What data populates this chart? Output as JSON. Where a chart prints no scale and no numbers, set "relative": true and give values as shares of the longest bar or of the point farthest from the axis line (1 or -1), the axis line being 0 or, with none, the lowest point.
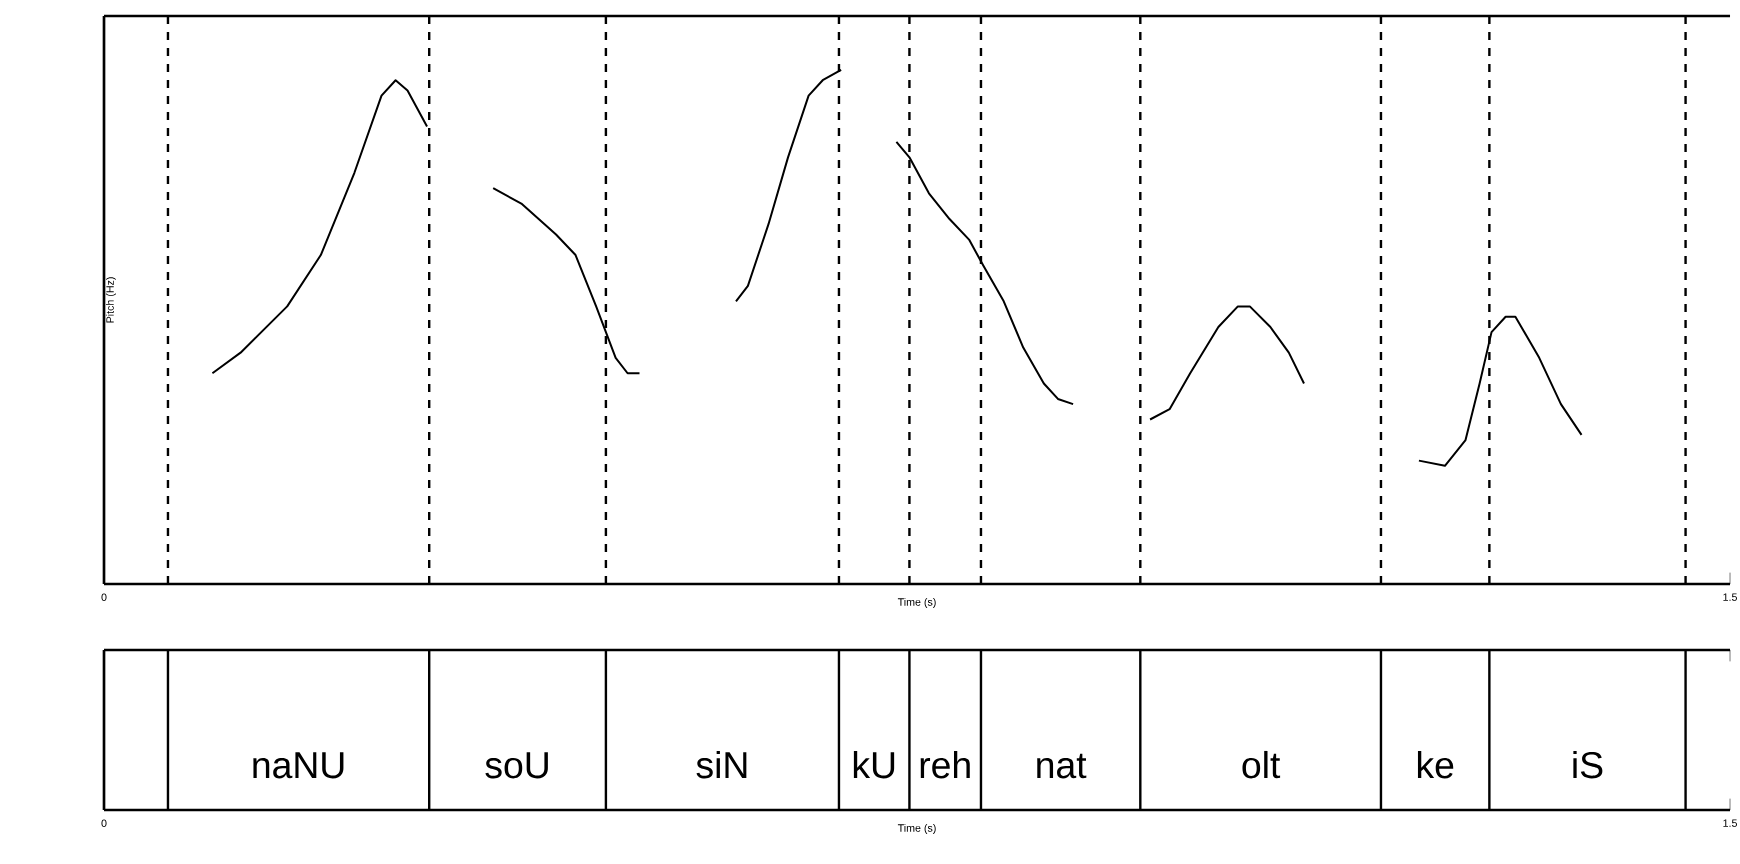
{
  "chart_data": {
    "type": "line",
    "relative": true,
    "xlabel": "Time (s)",
    "ylabel": "Pitch (Hz)",
    "xlim": [
      0,
      1.5
    ],
    "xticks": [
      0,
      1.5
    ],
    "x2lim": [
      0,
      1.5
    ],
    "x2ticks": [
      0,
      1.5
    ],
    "x2label": "Time (s)",
    "marker": "none",
    "line_style": "solid",
    "grid": false,
    "series": [
      {
        "color": "#000000",
        "x": [
          0.1,
          0.126,
          0.169,
          0.2,
          0.231,
          0.256,
          0.269,
          0.28,
          0.298,
          null,
          0.359,
          0.385,
          0.417,
          0.435,
          0.454,
          0.472,
          0.483,
          0.494,
          null,
          0.583,
          0.594,
          0.613,
          0.631,
          0.65,
          0.663,
          0.68,
          null,
          0.731,
          0.743,
          0.761,
          0.78,
          0.798,
          0.811,
          0.83,
          0.848,
          0.867,
          0.88,
          0.894,
          null,
          0.965,
          0.983,
          1.002,
          1.028,
          1.046,
          1.057,
          1.076,
          1.093,
          1.107,
          null,
          1.213,
          1.237,
          1.256,
          1.269,
          1.28,
          1.293,
          1.302,
          1.324,
          1.344,
          1.363
        ],
        "values": [
          0.41,
          0.45,
          0.54,
          0.64,
          0.8,
          0.95,
          0.98,
          0.96,
          0.89,
          null,
          0.77,
          0.74,
          0.68,
          0.64,
          0.54,
          0.44,
          0.41,
          0.41,
          null,
          0.55,
          0.58,
          0.7,
          0.83,
          0.95,
          0.98,
          1.0,
          null,
          0.86,
          0.83,
          0.76,
          0.71,
          0.67,
          0.62,
          0.55,
          0.46,
          0.39,
          0.36,
          0.35,
          null,
          0.32,
          0.34,
          0.41,
          0.5,
          0.54,
          0.54,
          0.5,
          0.45,
          0.39,
          null,
          0.24,
          0.23,
          0.28,
          0.39,
          0.49,
          0.52,
          0.52,
          0.44,
          0.35,
          0.29
        ]
      }
    ],
    "ref_lines": [
      {
        "axis": "x",
        "value": 0.059,
        "line_style": "dashed",
        "color": "#000000"
      },
      {
        "axis": "x",
        "value": 0.3,
        "line_style": "dashed",
        "color": "#000000"
      },
      {
        "axis": "x",
        "value": 0.463,
        "line_style": "dashed",
        "color": "#000000"
      },
      {
        "axis": "x",
        "value": 0.678,
        "line_style": "dashed",
        "color": "#000000"
      },
      {
        "axis": "x",
        "value": 0.743,
        "line_style": "dashed",
        "color": "#000000"
      },
      {
        "axis": "x",
        "value": 0.809,
        "line_style": "dashed",
        "color": "#000000"
      },
      {
        "axis": "x",
        "value": 0.956,
        "line_style": "dashed",
        "color": "#000000"
      },
      {
        "axis": "x",
        "value": 1.178,
        "line_style": "dashed",
        "color": "#000000"
      },
      {
        "axis": "x",
        "value": 1.278,
        "line_style": "dashed",
        "color": "#000000"
      },
      {
        "axis": "x",
        "value": 1.459,
        "line_style": "dashed",
        "color": "#000000"
      }
    ],
    "annotations": [
      "naNU",
      "soU",
      "siN",
      "kU",
      "reh",
      "nat",
      "olt",
      "ke",
      "iS"
    ]
  }
}
